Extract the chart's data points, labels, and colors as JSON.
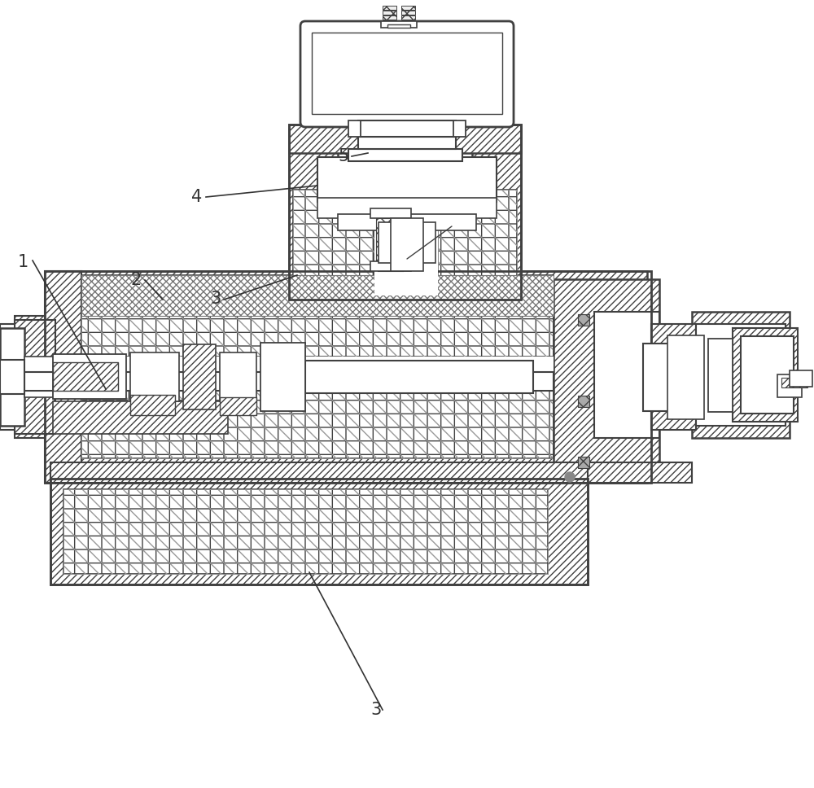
{
  "fig_width": 10.0,
  "fig_height": 9.68,
  "dpi": 100,
  "bg_color": "#ffffff",
  "line_color": "#404040",
  "label_color": "#333333",
  "label_fontsize": 15,
  "hatch_diagonal": "////",
  "hatch_grid": "++",
  "hatch_cross": "xx"
}
